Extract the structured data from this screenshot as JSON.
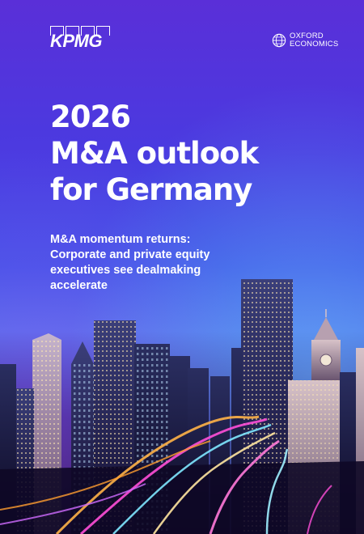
{
  "logos": {
    "kpmg": "KPMG",
    "oxford_line1": "OXFORD",
    "oxford_line2": "ECONOMICS"
  },
  "title": {
    "line1": "2026",
    "line2": "M&A outlook",
    "line3": "for Germany"
  },
  "subtitle": {
    "line1": "M&A momentum returns:",
    "line2": "Corporate and private equity",
    "line3": "executives see dealmaking",
    "line4": "accelerate"
  },
  "colors": {
    "background_top": "#5a2fd8",
    "background_mid": "#3d55e6",
    "text": "#ffffff",
    "light_trail_pink": "#ff4fd8",
    "light_trail_orange": "#ffb347",
    "light_trail_cyan": "#7fe8ff"
  },
  "icons": {
    "kpmg_logo": "kpmg-logo",
    "oxford_logo": "globe-icon"
  }
}
